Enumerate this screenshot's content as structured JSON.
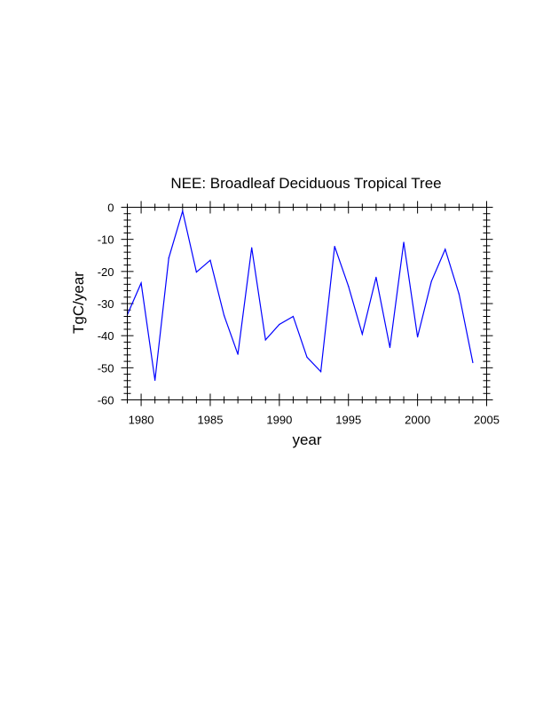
{
  "chart_data": {
    "type": "line",
    "title": "NEE: Broadleaf Deciduous Tropical Tree",
    "xlabel": "year",
    "ylabel": "TgC/year",
    "xlim": [
      1979,
      2005
    ],
    "ylim": [
      -60,
      0
    ],
    "xticks": [
      1980,
      1985,
      1990,
      1995,
      2000,
      2005
    ],
    "yticks": [
      0,
      -10,
      -20,
      -30,
      -40,
      -50,
      -60
    ],
    "grid": false,
    "series": [
      {
        "color": "#0000ff",
        "x": [
          1979,
          1980,
          1981,
          1982,
          1983,
          1984,
          1985,
          1986,
          1987,
          1988,
          1989,
          1990,
          1991,
          1992,
          1993,
          1994,
          1995,
          1996,
          1997,
          1998,
          1999,
          2000,
          2001,
          2002,
          2003,
          2004
        ],
        "y": [
          -33.5,
          -23.6,
          -53.9,
          -15.8,
          -1.2,
          -20.2,
          -16.5,
          -33.7,
          -45.8,
          -12.6,
          -41.3,
          -36.5,
          -34.0,
          -46.7,
          -51.2,
          -12.2,
          -24.6,
          -39.5,
          -21.8,
          -43.7,
          -10.9,
          -40.4,
          -23.1,
          -13.1,
          -27.0,
          -48.4
        ]
      }
    ]
  }
}
